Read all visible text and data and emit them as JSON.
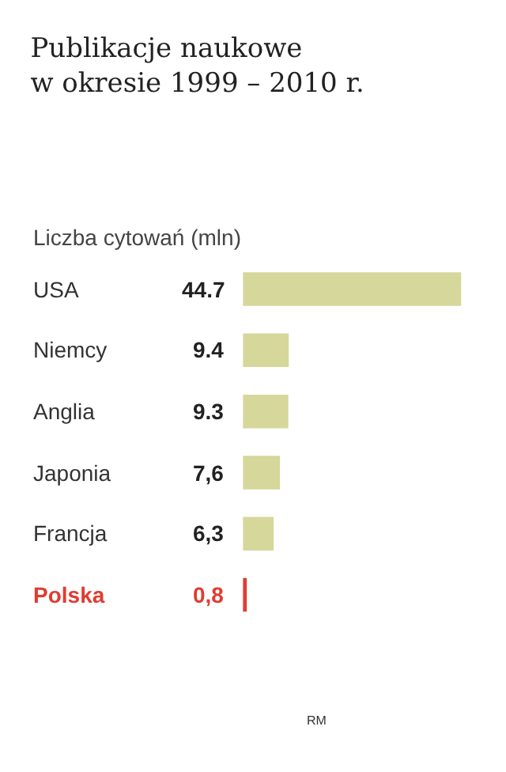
{
  "chart_data": {
    "type": "bar",
    "orientation": "horizontal",
    "title": "Publikacje naukowe\nw okresie 1999 – 2010 r.",
    "subtitle": "Liczba cytowań (mln)",
    "categories": [
      "USA",
      "Niemcy",
      "Anglia",
      "Japonia",
      "Francja",
      "Polska"
    ],
    "values": [
      44.7,
      9.4,
      9.3,
      7.6,
      6.3,
      0.8
    ],
    "value_labels": [
      "44.7",
      "9.4",
      "9.3",
      "7,6",
      "6,3",
      "0,8"
    ],
    "colors": [
      "#d6d79a",
      "#d6d79a",
      "#d6d79a",
      "#d6d79a",
      "#d6d79a",
      "#e03c31"
    ],
    "annotations": [
      "RM"
    ]
  }
}
